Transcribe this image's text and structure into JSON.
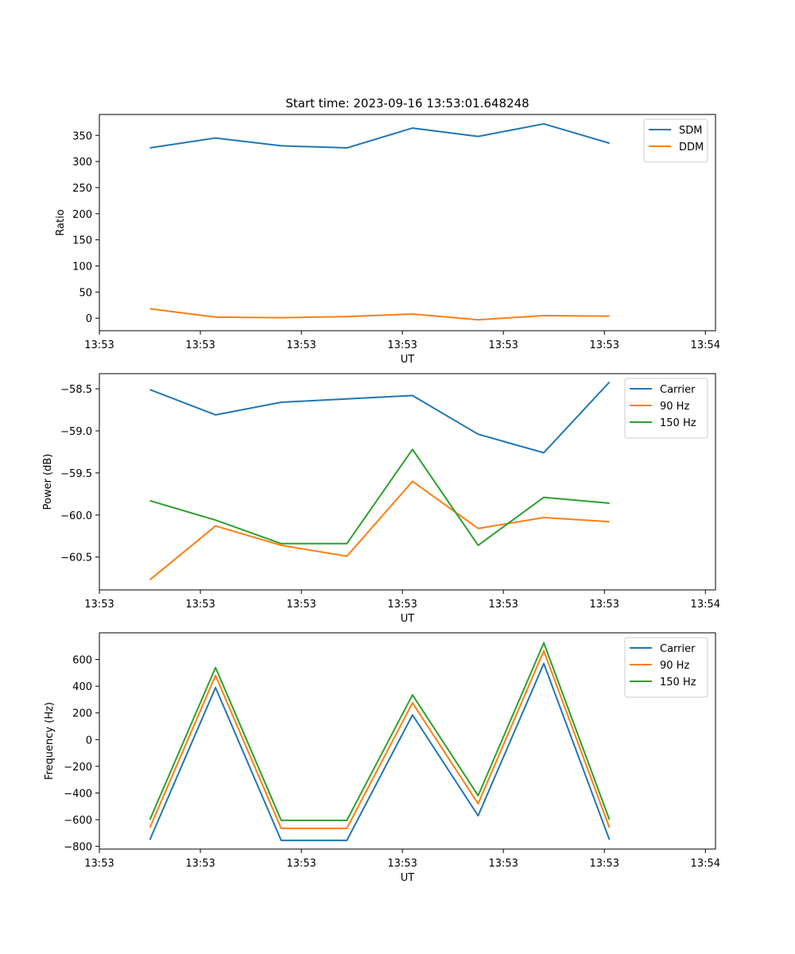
{
  "chart_data": [
    {
      "type": "line",
      "title": "Start time: 2023-09-16 13:53:01.648248",
      "xlabel": "UT",
      "ylabel": "Ratio",
      "x_ticks": [
        "13:53",
        "13:53",
        "13:53",
        "13:53",
        "13:53",
        "13:53",
        "13:54"
      ],
      "x_range": [
        0,
        6.1
      ],
      "x": [
        0.5,
        1.15,
        1.8,
        2.45,
        3.1,
        3.75,
        4.4,
        5.05
      ],
      "y_ticks": [
        0,
        50,
        100,
        150,
        200,
        250,
        300,
        350
      ],
      "ylim": [
        -24,
        390
      ],
      "legend_position": "top-right",
      "series": [
        {
          "name": "SDM",
          "color": "#1f77b4",
          "values": [
            326,
            345,
            330,
            326,
            364,
            348,
            372,
            335
          ]
        },
        {
          "name": "DDM",
          "color": "#ff7f0e",
          "values": [
            18,
            2,
            1,
            3,
            8,
            -3,
            5,
            4
          ]
        }
      ]
    },
    {
      "type": "line",
      "title": "",
      "xlabel": "UT",
      "ylabel": "Power (dB)",
      "x_ticks": [
        "13:53",
        "13:53",
        "13:53",
        "13:53",
        "13:53",
        "13:53",
        "13:54"
      ],
      "x_range": [
        0,
        6.1
      ],
      "x": [
        0.5,
        1.15,
        1.8,
        2.45,
        3.1,
        3.75,
        4.4,
        5.05
      ],
      "y_ticks": [
        -60.5,
        -60.0,
        -59.5,
        -59.0,
        -58.5
      ],
      "y_tick_labels": [
        "−60.5",
        "−60.0",
        "−59.5",
        "−59.0",
        "−58.5"
      ],
      "ylim": [
        -60.89,
        -58.32
      ],
      "legend_position": "top-right",
      "series": [
        {
          "name": "Carrier",
          "color": "#1f77b4",
          "values": [
            -58.51,
            -58.81,
            -58.66,
            -58.62,
            -58.58,
            -59.04,
            -59.26,
            -58.42
          ]
        },
        {
          "name": "90 Hz",
          "color": "#ff7f0e",
          "values": [
            -60.77,
            -60.13,
            -60.36,
            -60.49,
            -59.6,
            -60.16,
            -60.03,
            -60.08
          ]
        },
        {
          "name": "150 Hz",
          "color": "#2ca02c",
          "values": [
            -59.83,
            -60.06,
            -60.34,
            -60.34,
            -59.22,
            -60.36,
            -59.79,
            -59.86
          ]
        }
      ]
    },
    {
      "type": "line",
      "title": "",
      "xlabel": "UT",
      "ylabel": "Frequency (Hz)",
      "x_ticks": [
        "13:53",
        "13:53",
        "13:53",
        "13:53",
        "13:53",
        "13:53",
        "13:54"
      ],
      "x_range": [
        0,
        6.1
      ],
      "x": [
        0.5,
        1.15,
        1.8,
        2.45,
        3.1,
        3.75,
        4.4,
        5.05
      ],
      "y_ticks": [
        -800,
        -600,
        -400,
        -200,
        0,
        200,
        400,
        600
      ],
      "y_tick_labels": [
        "−800",
        "−600",
        "−400",
        "−200",
        "0",
        "200",
        "400",
        "600"
      ],
      "ylim": [
        -820,
        800
      ],
      "legend_position": "top-right",
      "series": [
        {
          "name": "Carrier",
          "color": "#1f77b4",
          "values": [
            -750,
            390,
            -755,
            -755,
            185,
            -570,
            570,
            -750
          ]
        },
        {
          "name": "90 Hz",
          "color": "#ff7f0e",
          "values": [
            -660,
            480,
            -665,
            -665,
            275,
            -480,
            665,
            -660
          ]
        },
        {
          "name": "150 Hz",
          "color": "#2ca02c",
          "values": [
            -600,
            540,
            -605,
            -605,
            335,
            -420,
            725,
            -600
          ]
        }
      ]
    }
  ]
}
